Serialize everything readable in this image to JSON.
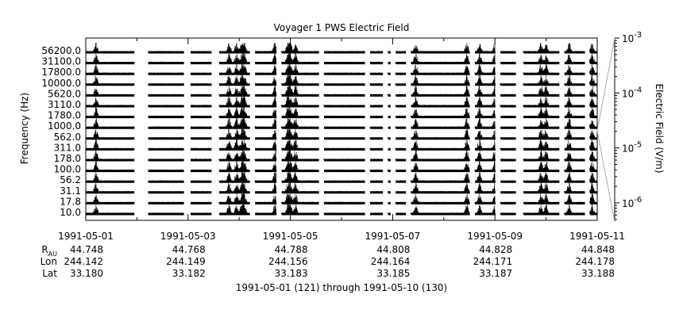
{
  "chart_data": {
    "type": "line",
    "title": "Voyager 1 PWS Electric Field",
    "xlabel": "1991-05-01 (121) through 1991-05-10 (130)",
    "ylabel": "Frequency (Hz)",
    "y2label": "Electric Field (V/m)",
    "frequency_channels": [
      "56200.0",
      "31100.0",
      "17800.0",
      "10000.0",
      "5620.0",
      "3110.0",
      "1780.0",
      "1000.0",
      "562.0",
      "311.0",
      "178.0",
      "100.0",
      "56.2",
      "31.1",
      "17.8",
      "10.0"
    ],
    "x_range": [
      "1991-05-01",
      "1991-05-11"
    ],
    "x_ticks": [
      "1991-05-01",
      "1991-05-03",
      "1991-05-05",
      "1991-05-07",
      "1991-05-09",
      "1991-05-11"
    ],
    "y2_scale": "log",
    "y2_range": [
      4.5e-07,
      0.001
    ],
    "y2_ticks": [
      {
        "base": "10",
        "exp": "-3"
      },
      {
        "base": "10",
        "exp": "-4"
      },
      {
        "base": "10",
        "exp": "-5"
      },
      {
        "base": "10",
        "exp": "-6"
      }
    ],
    "data_gaps_days": [
      [
        0.95,
        1.22
      ],
      [
        1.92,
        2.05
      ],
      [
        2.45,
        2.6
      ],
      [
        3.2,
        3.3
      ],
      [
        3.72,
        3.82
      ],
      [
        4.55,
        4.65
      ],
      [
        5.45,
        5.55
      ],
      [
        5.8,
        5.9
      ],
      [
        5.95,
        6.05
      ],
      [
        6.25,
        6.35
      ],
      [
        7.5,
        7.6
      ],
      [
        8.0,
        8.1
      ],
      [
        8.4,
        8.55
      ],
      [
        9.25,
        9.35
      ],
      [
        9.75,
        9.85
      ]
    ],
    "activity_peaks_days": [
      0.2,
      2.8,
      2.95,
      3.05,
      3.1,
      3.7,
      3.95,
      4.0,
      4.1,
      6.45,
      7.45,
      7.7,
      8.0,
      8.9,
      9.0,
      9.45,
      9.9
    ]
  },
  "orbit_table": {
    "rows": [
      {
        "label": "R",
        "sub": "AU",
        "values": [
          "44.748",
          "44.768",
          "44.788",
          "44.808",
          "44.828",
          "44.848"
        ]
      },
      {
        "label": "Lon",
        "sub": "",
        "values": [
          "244.142",
          "244.149",
          "244.156",
          "244.164",
          "244.171",
          "244.178"
        ]
      },
      {
        "label": "Lat",
        "sub": "",
        "values": [
          "33.180",
          "33.182",
          "33.183",
          "33.185",
          "33.187",
          "33.188"
        ]
      }
    ]
  }
}
